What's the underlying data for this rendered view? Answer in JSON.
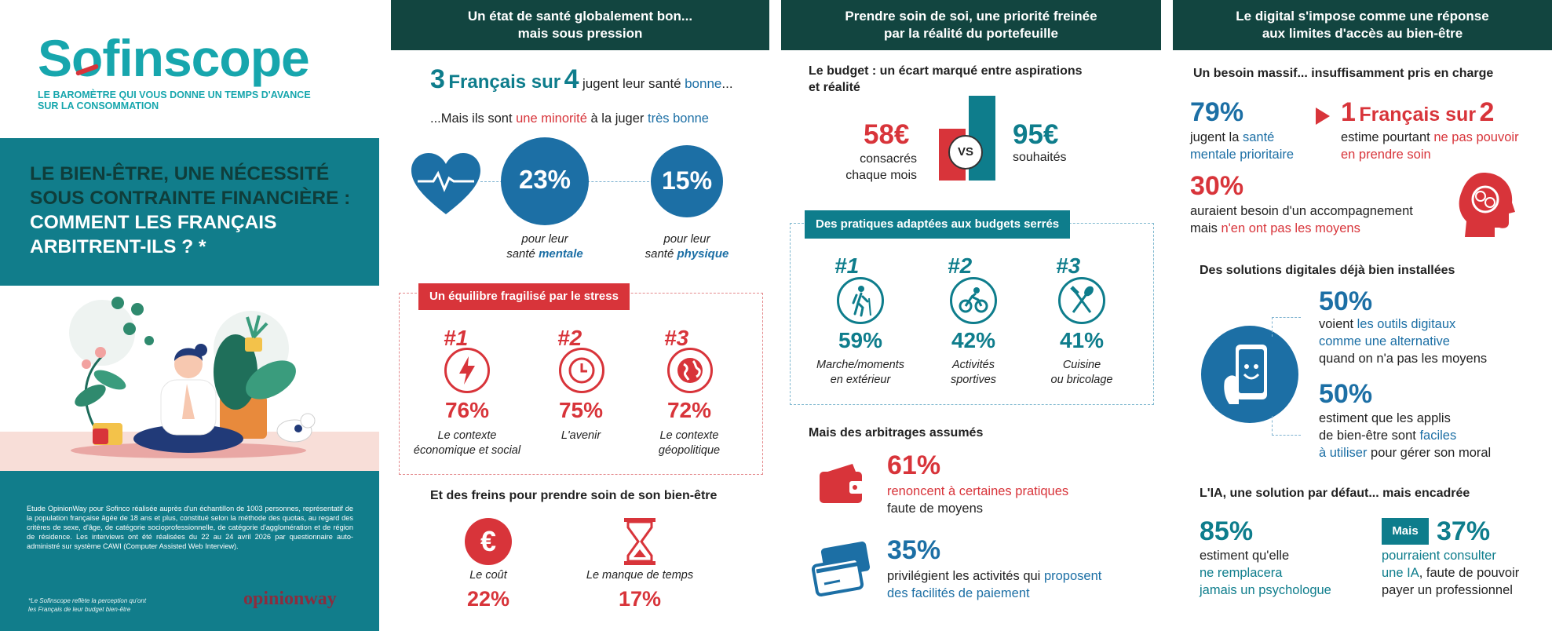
{
  "brand": {
    "logo": "Sofinscope",
    "tagline_l1": "LE BAROMÈTRE QUI VOUS DONNE UN TEMPS D'AVANCE",
    "tagline_l2": "SUR LA CONSOMMATION"
  },
  "left": {
    "title_l1": "LE BIEN-ÊTRE, UNE NÉCESSITÉ",
    "title_l2": "SOUS CONTRAINTE FINANCIÈRE :",
    "title_l3": "COMMENT LES FRANÇAIS",
    "title_l4": "ARBITRENT-ILS ? *",
    "methodology": "Etude OpinionWay pour Sofinco réalisée auprès d'un échantillon de 1003 personnes, représentatif de la population française âgée de 18 ans et plus, constitué selon la méthode des quotas, au regard des critères de sexe, d'âge, de catégorie socioprofessionnelle, de catégorie d'agglomération et de région de résidence. Les interviews ont été réalisées du 22 au 24 avril 2026 par questionnaire auto-administré sur système CAWI (Computer Assisted Web Interview).",
    "footnote_l1": "*Le Sofinscope reflète la perception qu'ont",
    "footnote_l2": "les Français de leur budget bien-être",
    "partner": "opinionway"
  },
  "col1": {
    "header_l1": "Un état de santé globalement bon...",
    "header_l2": "mais sous pression",
    "stat_num1": "3",
    "stat_mid": "Français sur",
    "stat_num2": "4",
    "stat_tail1": "jugent leur santé",
    "stat_tail2": "bonne",
    "stat_tail3": "...",
    "sub_a": "...Mais ils sont",
    "sub_b": "une minorité",
    "sub_c": "à la juger",
    "sub_d": "très bonne",
    "mental_pct": "23%",
    "mental_l1": "pour leur",
    "mental_l2": "santé",
    "mental_l3": "mentale",
    "physical_pct": "15%",
    "physical_l1": "pour leur",
    "physical_l2": "santé",
    "physical_l3": "physique",
    "stress_label": "Un équilibre fragilisé par le stress",
    "stress_items": [
      {
        "rank": "#1",
        "pct": "76%",
        "l1": "Le contexte",
        "l2": "économique et social",
        "icon": "lightning-icon"
      },
      {
        "rank": "#2",
        "pct": "75%",
        "l1": "L'avenir",
        "l2": "",
        "icon": "clock-icon"
      },
      {
        "rank": "#3",
        "pct": "72%",
        "l1": "Le contexte",
        "l2": "géopolitique",
        "icon": "globe-icon"
      }
    ],
    "brakes_title": "Et des freins pour prendre soin de son bien-être",
    "brakes": [
      {
        "label": "Le coût",
        "pct": "22%",
        "icon": "euro-icon"
      },
      {
        "label": "Le manque de temps",
        "pct": "17%",
        "icon": "hourglass-icon"
      }
    ]
  },
  "col2": {
    "header_l1": "Prendre soin de soi, une priorité freinée",
    "header_l2": "par la réalité du portefeuille",
    "budget_title_l1": "Le budget : un écart marqué entre aspirations",
    "budget_title_l2": "et réalité",
    "spent": "58€",
    "spent_l1": "consacrés",
    "spent_l2": "chaque mois",
    "vs": "VS",
    "wished": "95€",
    "wished_l1": "souhaités",
    "practices_label": "Des pratiques adaptées aux budgets serrés",
    "practices": [
      {
        "rank": "#1",
        "pct": "59%",
        "l1": "Marche/moments",
        "l2": "en extérieur",
        "icon": "hiker-icon"
      },
      {
        "rank": "#2",
        "pct": "42%",
        "l1": "Activités",
        "l2": "sportives",
        "icon": "cyclist-icon"
      },
      {
        "rank": "#3",
        "pct": "41%",
        "l1": "Cuisine",
        "l2": "ou bricolage",
        "icon": "utensils-icon"
      }
    ],
    "tradeoffs_title": "Mais des arbitrages assumés",
    "t1_pct": "61%",
    "t1_l1": "renoncent à certaines pratiques",
    "t1_l2": "faute de moyens",
    "t2_pct": "35%",
    "t2_l1a": "privilégient les activités qui",
    "t2_l1b": "proposent",
    "t2_l2": "des facilités de paiement"
  },
  "col3": {
    "header_l1": "Le digital s'impose comme une réponse",
    "header_l2": "aux limites d'accès au bien-être",
    "need_title": "Un besoin massif... insuffisamment pris en charge",
    "n1_pct": "79%",
    "n1_l1a": "jugent la",
    "n1_l1b": "santé",
    "n1_l2": "mentale prioritaire",
    "n2_num1": "1",
    "n2_mid": "Français sur",
    "n2_num2": "2",
    "n2_l1a": "estime pourtant",
    "n2_l1b": "ne pas pouvoir",
    "n2_l2": "en prendre soin",
    "n3_pct": "30%",
    "n3_l1": "auraient besoin d'un accompagnement",
    "n3_l2a": "mais",
    "n3_l2b": "n'en ont pas les moyens",
    "digital_title": "Des solutions digitales déjà bien installées",
    "d1_pct": "50%",
    "d1_l1a": "voient",
    "d1_l1b": "les outils digitaux",
    "d1_l2": "comme une alternative",
    "d1_l3": "quand on n'a pas les moyens",
    "d2_pct": "50%",
    "d2_l1": "estiment que les applis",
    "d2_l2a": "de bien-être sont",
    "d2_l2b": "faciles",
    "d2_l3a": "à utiliser",
    "d2_l3b": "pour gérer son moral",
    "ai_title": "L'IA, une solution par défaut... mais encadrée",
    "a1_pct": "85%",
    "a1_l1": "estiment qu'elle",
    "a1_l2": "ne remplacera",
    "a1_l3": "jamais un psychologue",
    "a2_badge": "Mais",
    "a2_pct": "37%",
    "a2_l1": "pourraient consulter",
    "a2_l2a": "une IA",
    "a2_l2b": ", faute de pouvoir",
    "a2_l3": "payer un professionnel"
  },
  "colors": {
    "teal": "#0e7d8c",
    "dark_green": "#124540",
    "red": "#d8343a",
    "blue": "#1c6fa5",
    "panel_teal": "#117d8b"
  }
}
